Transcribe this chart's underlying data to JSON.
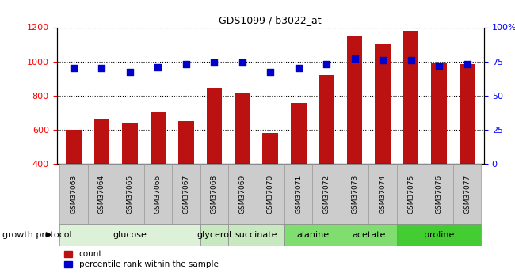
{
  "title": "GDS1099 / b3022_at",
  "samples": [
    "GSM37063",
    "GSM37064",
    "GSM37065",
    "GSM37066",
    "GSM37067",
    "GSM37068",
    "GSM37069",
    "GSM37070",
    "GSM37071",
    "GSM37072",
    "GSM37073",
    "GSM37074",
    "GSM37075",
    "GSM37076",
    "GSM37077"
  ],
  "counts": [
    600,
    660,
    635,
    705,
    650,
    845,
    815,
    580,
    755,
    920,
    1145,
    1105,
    1180,
    990,
    985
  ],
  "percentiles": [
    70,
    70,
    67,
    71,
    73,
    74,
    74,
    67,
    70,
    73,
    77,
    76,
    76,
    72,
    73
  ],
  "bar_color": "#bb1111",
  "dot_color": "#0000cc",
  "ylim_left": [
    400,
    1200
  ],
  "ylim_right": [
    0,
    100
  ],
  "yticks_left": [
    400,
    600,
    800,
    1000,
    1200
  ],
  "yticks_right": [
    0,
    25,
    50,
    75,
    100
  ],
  "yticklabels_right": [
    "0",
    "25",
    "50",
    "75",
    "100%"
  ],
  "groups": [
    {
      "label": "glucose",
      "start": 0,
      "end": 5,
      "color": "#ddf0d8"
    },
    {
      "label": "glycerol",
      "start": 5,
      "end": 6,
      "color": "#c8e8c0"
    },
    {
      "label": "succinate",
      "start": 6,
      "end": 8,
      "color": "#c8e8c0"
    },
    {
      "label": "alanine",
      "start": 8,
      "end": 10,
      "color": "#80dd70"
    },
    {
      "label": "acetate",
      "start": 10,
      "end": 12,
      "color": "#80dd70"
    },
    {
      "label": "proline",
      "start": 12,
      "end": 15,
      "color": "#44cc33"
    }
  ],
  "growth_protocol_label": "growth protocol",
  "legend_count_label": "count",
  "legend_pct_label": "percentile rank within the sample",
  "bar_width": 0.55,
  "dot_size": 40,
  "sample_box_color": "#cccccc",
  "sample_box_edgecolor": "#999999"
}
